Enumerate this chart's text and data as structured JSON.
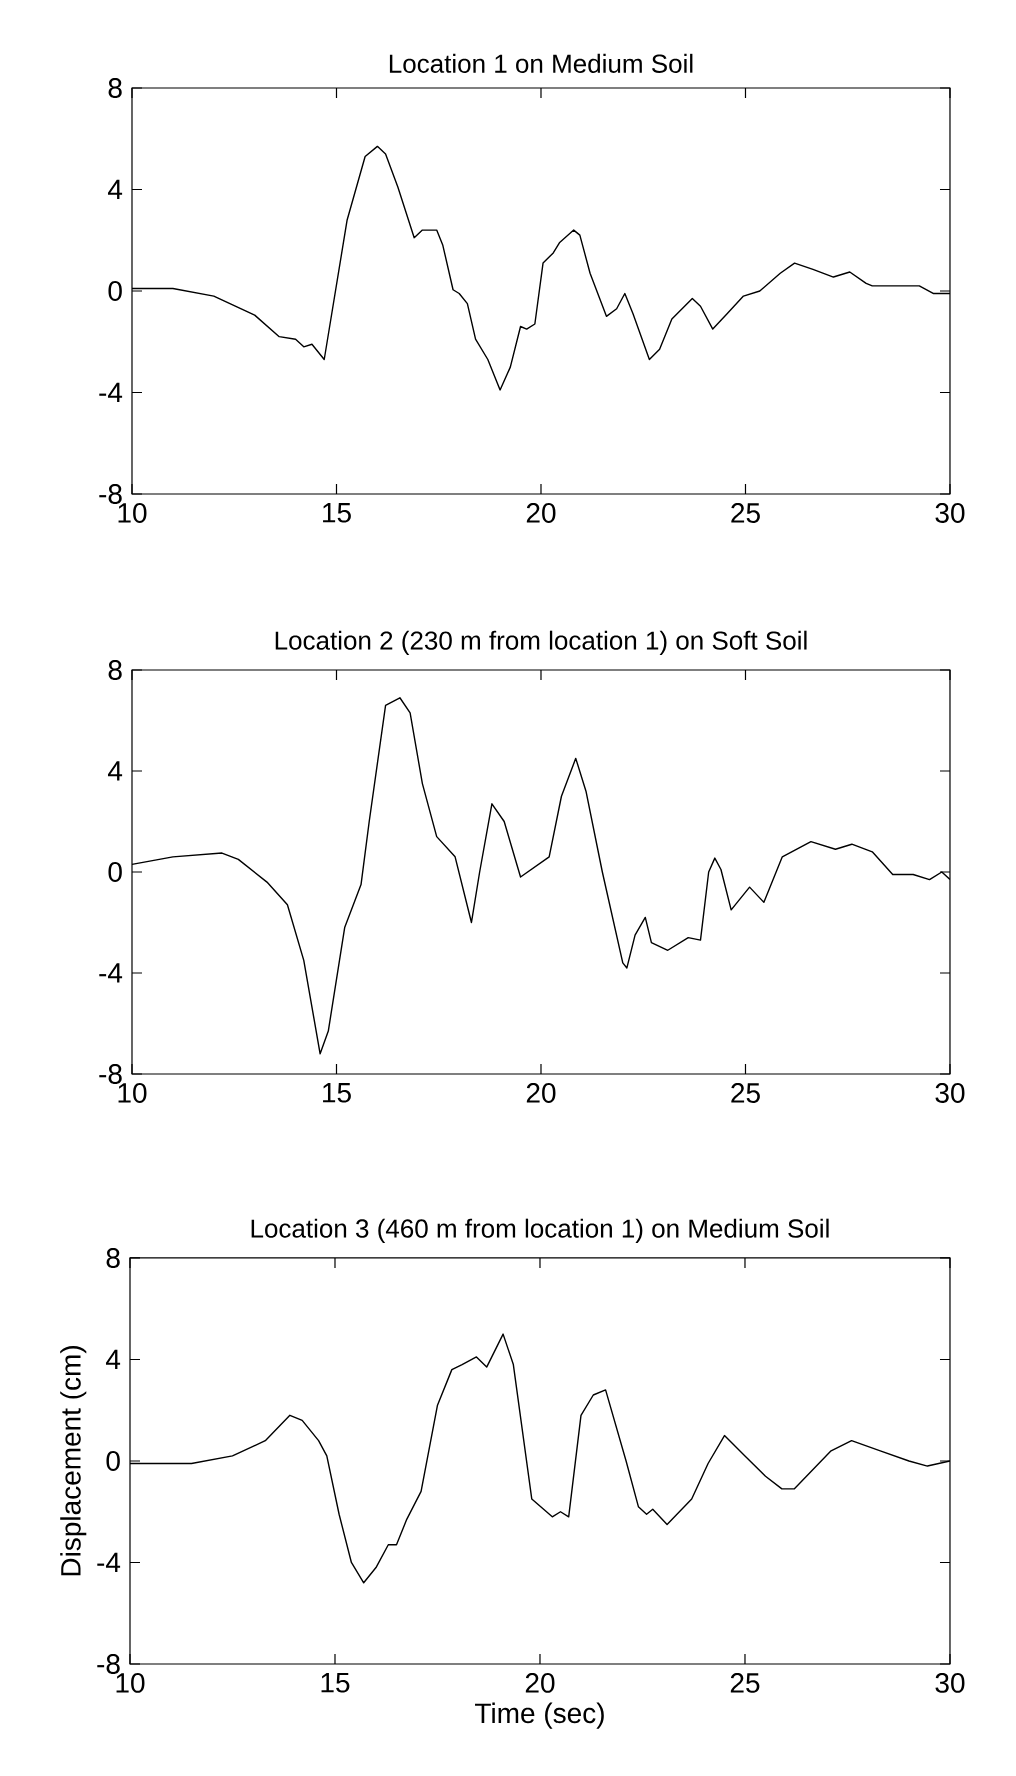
{
  "chart_data": [
    {
      "type": "line",
      "title": "Location 1 on Medium Soil",
      "color": "#000000",
      "xlim": [
        10,
        30
      ],
      "ylim": [
        -8,
        8
      ],
      "xticks": [
        10,
        15,
        20,
        25,
        30
      ],
      "yticks": [
        -8,
        -4,
        0,
        4,
        8
      ],
      "x": [
        10,
        11,
        12,
        13,
        13.6,
        14,
        14.2,
        14.4,
        14.7,
        15.26,
        15.7,
        16.0,
        16.2,
        16.5,
        16.9,
        17.1,
        17.45,
        17.6,
        17.85,
        18.0,
        18.2,
        18.4,
        18.7,
        19.0,
        19.25,
        19.5,
        19.65,
        19.85,
        20.05,
        20.3,
        20.45,
        20.8,
        20.95,
        21.2,
        21.6,
        21.85,
        22.05,
        22.25,
        22.65,
        22.9,
        23.2,
        23.7,
        23.9,
        24.2,
        24.55,
        24.95,
        25.35,
        25.85,
        26.2,
        26.65,
        27.15,
        27.55,
        27.95,
        28.1,
        29.25,
        29.6,
        30
      ],
      "values": [
        0.1,
        0.1,
        -0.2,
        -0.95,
        -1.8,
        -1.9,
        -2.2,
        -2.1,
        -2.7,
        2.8,
        5.3,
        5.7,
        5.4,
        4.1,
        2.1,
        2.4,
        2.4,
        1.8,
        0.05,
        -0.1,
        -0.5,
        -1.9,
        -2.7,
        -3.9,
        -3.0,
        -1.4,
        -1.5,
        -1.3,
        1.1,
        1.5,
        1.9,
        2.4,
        2.2,
        0.7,
        -1.0,
        -0.7,
        -0.1,
        -0.9,
        -2.7,
        -2.3,
        -1.1,
        -0.3,
        -0.6,
        -1.5,
        -0.9,
        -0.2,
        0.0,
        0.7,
        1.1,
        0.85,
        0.55,
        0.75,
        0.3,
        0.2,
        0.2,
        -0.1,
        -0.1
      ]
    },
    {
      "type": "line",
      "title": "Location 2 (230 m from location 1) on Soft Soil",
      "color": "#000000",
      "xlim": [
        10,
        30
      ],
      "ylim": [
        -8,
        8
      ],
      "xticks": [
        10,
        15,
        20,
        25,
        30
      ],
      "yticks": [
        -8,
        -4,
        0,
        4,
        8
      ],
      "x": [
        10,
        11,
        12.2,
        12.6,
        13.3,
        13.8,
        14.2,
        14.6,
        14.8,
        15.2,
        15.6,
        15.8,
        16.2,
        16.55,
        16.8,
        17.1,
        17.45,
        17.9,
        18.3,
        18.5,
        18.8,
        19.1,
        19.5,
        20.2,
        20.5,
        20.85,
        21.1,
        21.5,
        22.0,
        22.1,
        22.3,
        22.55,
        22.7,
        23.1,
        23.6,
        23.9,
        24.1,
        24.25,
        24.4,
        24.65,
        25.1,
        25.45,
        25.9,
        26.6,
        27.2,
        27.6,
        28.1,
        28.6,
        29.1,
        29.5,
        29.8,
        30
      ],
      "values": [
        0.3,
        0.6,
        0.75,
        0.5,
        -0.4,
        -1.3,
        -3.5,
        -7.2,
        -6.3,
        -2.2,
        -0.5,
        2.0,
        6.6,
        6.9,
        6.3,
        3.5,
        1.4,
        0.6,
        -2.0,
        0.0,
        2.7,
        2.0,
        -0.2,
        0.6,
        3.0,
        4.5,
        3.2,
        0.0,
        -3.6,
        -3.8,
        -2.5,
        -1.8,
        -2.8,
        -3.1,
        -2.6,
        -2.7,
        0.0,
        0.55,
        0.1,
        -1.5,
        -0.6,
        -1.2,
        0.6,
        1.2,
        0.9,
        1.1,
        0.8,
        -0.1,
        -0.1,
        -0.3,
        0.0,
        -0.3
      ]
    },
    {
      "type": "line",
      "title": "Location 3 (460 m from location 1) on Medium Soil",
      "xlabel": "Time (sec)",
      "ylabel": "Displacement (cm)",
      "color": "#000000",
      "xlim": [
        10,
        30
      ],
      "ylim": [
        -8,
        8
      ],
      "xticks": [
        10,
        15,
        20,
        25,
        30
      ],
      "yticks": [
        -8,
        -4,
        0,
        4,
        8
      ],
      "x": [
        10,
        11.5,
        12.5,
        13.3,
        13.9,
        14.2,
        14.6,
        14.8,
        15.1,
        15.4,
        15.7,
        16.0,
        16.3,
        16.5,
        16.75,
        17.1,
        17.5,
        17.85,
        18.1,
        18.45,
        18.7,
        19.1,
        19.35,
        19.8,
        20.3,
        20.5,
        20.7,
        21.0,
        21.3,
        21.6,
        22.1,
        22.4,
        22.6,
        22.75,
        23.1,
        23.7,
        24.1,
        24.5,
        25.0,
        25.5,
        25.9,
        26.2,
        27.1,
        27.6,
        28.3,
        29.0,
        29.45,
        30
      ],
      "values": [
        -0.1,
        -0.1,
        0.2,
        0.8,
        1.8,
        1.6,
        0.8,
        0.2,
        -2.1,
        -4.0,
        -4.8,
        -4.2,
        -3.3,
        -3.3,
        -2.3,
        -1.2,
        2.2,
        3.6,
        3.8,
        4.1,
        3.7,
        5.0,
        3.8,
        -1.5,
        -2.2,
        -2.0,
        -2.2,
        1.8,
        2.6,
        2.8,
        0.0,
        -1.8,
        -2.1,
        -1.9,
        -2.5,
        -1.5,
        -0.1,
        1.0,
        0.2,
        -0.6,
        -1.1,
        -1.1,
        0.4,
        0.8,
        0.4,
        0.0,
        -0.2,
        0.0
      ]
    }
  ]
}
